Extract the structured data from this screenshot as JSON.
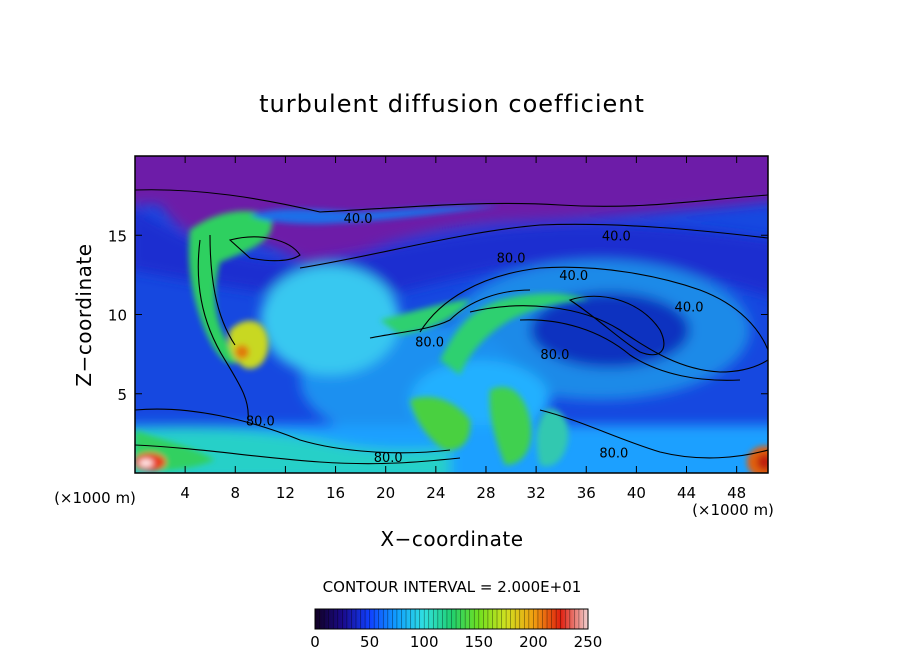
{
  "chart_data": {
    "type": "heatmap",
    "title": "turbulent diffusion coefficient",
    "xlabel": "X−coordinate",
    "ylabel": "Z−coordinate",
    "x_unit_left": "(×1000 m)",
    "x_unit_right": "(×1000 m)",
    "xlim": [
      0,
      50.5
    ],
    "ylim": [
      0,
      20
    ],
    "xticks": [
      4,
      8,
      12,
      16,
      20,
      24,
      28,
      32,
      36,
      40,
      44,
      48
    ],
    "yticks": [
      5,
      10,
      15
    ],
    "contour_interval_text": "CONTOUR INTERVAL = 2.000E+01",
    "colorbar": {
      "range": [
        0,
        250
      ],
      "ticks": [
        0,
        50,
        100,
        150,
        200,
        250
      ],
      "colors": [
        "#110022",
        "#1a0a8a",
        "#1040ff",
        "#10a0ff",
        "#30e0e0",
        "#20d070",
        "#70e020",
        "#d0e020",
        "#f0a010",
        "#e02010",
        "#f0d0d0"
      ]
    },
    "contour_labels": [
      {
        "text": "40.0",
        "x": 17.8,
        "z": 16.1
      },
      {
        "text": "40.0",
        "x": 38.4,
        "z": 15.0
      },
      {
        "text": "80.0",
        "x": 30.0,
        "z": 13.6
      },
      {
        "text": "40.0",
        "x": 35.0,
        "z": 12.5
      },
      {
        "text": "40.0",
        "x": 44.2,
        "z": 10.5
      },
      {
        "text": "80.0",
        "x": 23.5,
        "z": 8.3
      },
      {
        "text": "80.0",
        "x": 33.5,
        "z": 7.5
      },
      {
        "text": "80.0",
        "x": 10.0,
        "z": 3.3
      },
      {
        "text": "80.0",
        "x": 38.2,
        "z": 1.3
      },
      {
        "text": "80.0",
        "x": 20.2,
        "z": 1.0
      }
    ]
  }
}
